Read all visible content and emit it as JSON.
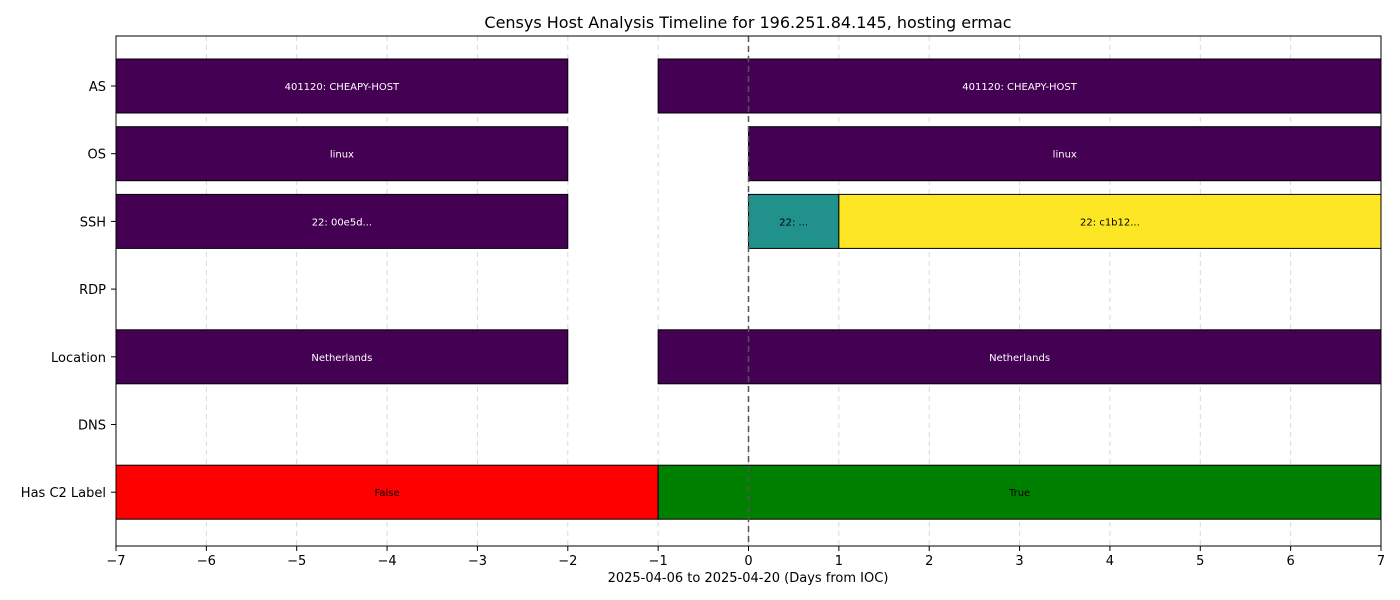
{
  "chart_data": {
    "type": "timeline",
    "title": "Censys Host Analysis Timeline for 196.251.84.145, hosting ermac",
    "xlabel": "2025-04-06 to 2025-04-20 (Days from IOC)",
    "xlim": [
      -7,
      7
    ],
    "xticks": [
      -7,
      -6,
      -5,
      -4,
      -3,
      -2,
      -1,
      0,
      1,
      2,
      3,
      4,
      5,
      6,
      7
    ],
    "xtick_labels": [
      "−7",
      "−6",
      "−5",
      "−4",
      "−3",
      "−2",
      "−1",
      "0",
      "1",
      "2",
      "3",
      "4",
      "5",
      "6",
      "7"
    ],
    "grid": "x-dashed",
    "ioc_line_x": 0,
    "rows": [
      "AS",
      "OS",
      "SSH",
      "RDP",
      "Location",
      "DNS",
      "Has C2 Label"
    ],
    "segments": [
      {
        "row": "AS",
        "start": -7,
        "end": -2,
        "label": "401120: CHEAPY-HOST",
        "color": "#440154",
        "text_color": "#ffffff"
      },
      {
        "row": "AS",
        "start": -1,
        "end": 7,
        "label": "401120: CHEAPY-HOST",
        "color": "#440154",
        "text_color": "#ffffff"
      },
      {
        "row": "OS",
        "start": -7,
        "end": -2,
        "label": "linux",
        "color": "#440154",
        "text_color": "#ffffff"
      },
      {
        "row": "OS",
        "start": 0,
        "end": 7,
        "label": "linux",
        "color": "#440154",
        "text_color": "#ffffff"
      },
      {
        "row": "SSH",
        "start": -7,
        "end": -2,
        "label": "22: 00e5d...",
        "color": "#440154",
        "text_color": "#ffffff"
      },
      {
        "row": "SSH",
        "start": 0,
        "end": 1,
        "label": "22: ...",
        "color": "#21918c",
        "text_color": "#000000"
      },
      {
        "row": "SSH",
        "start": 1,
        "end": 7,
        "label": "22: c1b12...",
        "color": "#fde725",
        "text_color": "#000000"
      },
      {
        "row": "Location",
        "start": -7,
        "end": -2,
        "label": "Netherlands",
        "color": "#440154",
        "text_color": "#ffffff"
      },
      {
        "row": "Location",
        "start": -1,
        "end": 7,
        "label": "Netherlands",
        "color": "#440154",
        "text_color": "#ffffff"
      },
      {
        "row": "Has C2 Label",
        "start": -7,
        "end": -1,
        "label": "False",
        "color": "#ff0000",
        "text_color": "#000000"
      },
      {
        "row": "Has C2 Label",
        "start": -1,
        "end": 7,
        "label": "True",
        "color": "#008000",
        "text_color": "#000000"
      }
    ]
  }
}
